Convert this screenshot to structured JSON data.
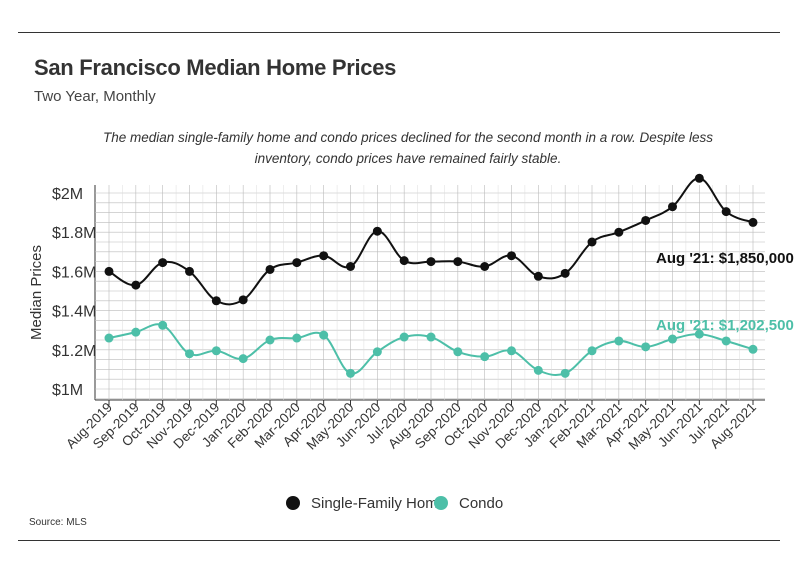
{
  "title": "San Francisco Median Home Prices",
  "subtitle": "Two Year, Monthly",
  "description": "The median single-family home and condo prices declined for the second month in a row. Despite less inventory, condo prices have remained fairly stable.",
  "source": "Source:  MLS",
  "chart_data": {
    "type": "line",
    "title": "San Francisco Median Home Prices",
    "subtitle": "Two Year, Monthly",
    "xlabel": "",
    "ylabel": "Median Prices",
    "ylim": [
      1000000,
      2000000
    ],
    "yticks": [
      {
        "value": 1000000,
        "label": "$1M"
      },
      {
        "value": 1200000,
        "label": "$1.2M"
      },
      {
        "value": 1400000,
        "label": "$1.4M"
      },
      {
        "value": 1600000,
        "label": "$1.6M"
      },
      {
        "value": 1800000,
        "label": "$1.8M"
      },
      {
        "value": 2000000,
        "label": "$2M"
      }
    ],
    "grid": true,
    "legend_position": "bottom-center",
    "categories": [
      "Aug-2019",
      "Sep-2019",
      "Oct-2019",
      "Nov-2019",
      "Dec-2019",
      "Jan-2020",
      "Feb-2020",
      "Mar-2020",
      "Apr-2020",
      "May-2020",
      "Jun-2020",
      "Jul-2020",
      "Aug-2020",
      "Sep-2020",
      "Oct-2020",
      "Nov-2020",
      "Dec-2020",
      "Jan-2021",
      "Feb-2021",
      "Mar-2021",
      "Apr-2021",
      "May-2021",
      "Jun-2021",
      "Jul-2021",
      "Aug-2021"
    ],
    "series": [
      {
        "name": "Single-Family Home",
        "color": "#111111",
        "values": [
          1600000,
          1530000,
          1645000,
          1600000,
          1450000,
          1455000,
          1610000,
          1645000,
          1680000,
          1625000,
          1805000,
          1655000,
          1650000,
          1650000,
          1625000,
          1680000,
          1575000,
          1590000,
          1750000,
          1800000,
          1860000,
          1930000,
          2075000,
          1905000,
          1850000
        ],
        "annotation": "Aug '21: $1,850,000"
      },
      {
        "name": "Condo",
        "color": "#4dbfa8",
        "values": [
          1260000,
          1290000,
          1325000,
          1180000,
          1195000,
          1155000,
          1250000,
          1260000,
          1275000,
          1080000,
          1190000,
          1265000,
          1265000,
          1190000,
          1165000,
          1195000,
          1095000,
          1080000,
          1195000,
          1245000,
          1215000,
          1255000,
          1280000,
          1245000,
          1202500
        ],
        "annotation": "Aug '21: $1,202,500"
      }
    ]
  }
}
